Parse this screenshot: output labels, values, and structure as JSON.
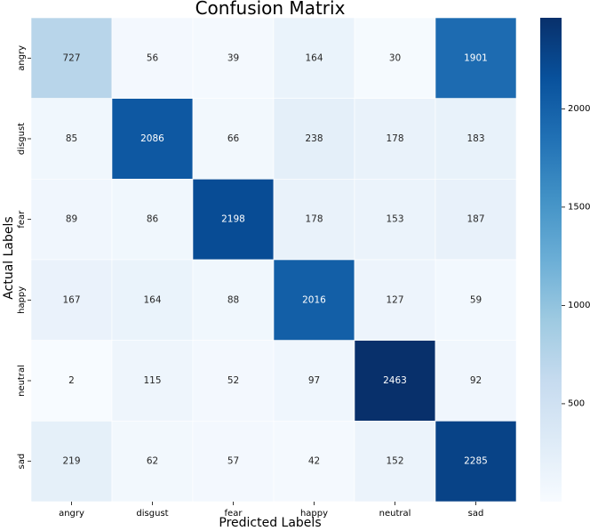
{
  "chart_data": {
    "type": "heatmap",
    "title": "Confusion Matrix",
    "xlabel": "Predicted Labels",
    "ylabel": "Actual Labels",
    "x_categories": [
      "angry",
      "disgust",
      "fear",
      "happy",
      "neutral",
      "sad"
    ],
    "y_categories": [
      "angry",
      "disgust",
      "fear",
      "happy",
      "neutral",
      "sad"
    ],
    "values": [
      [
        727,
        56,
        39,
        164,
        30,
        1901
      ],
      [
        85,
        2086,
        66,
        238,
        178,
        183
      ],
      [
        89,
        86,
        2198,
        178,
        153,
        187
      ],
      [
        167,
        164,
        88,
        2016,
        127,
        59
      ],
      [
        2,
        115,
        52,
        97,
        2463,
        92
      ],
      [
        219,
        62,
        57,
        42,
        152,
        2285
      ]
    ],
    "colormap": "Blues",
    "colorbar": {
      "min": 2,
      "max": 2463,
      "ticks": [
        500,
        1000,
        1500,
        2000
      ]
    },
    "colors": {
      "low": "#f7fbff",
      "high": "#08306b"
    }
  }
}
